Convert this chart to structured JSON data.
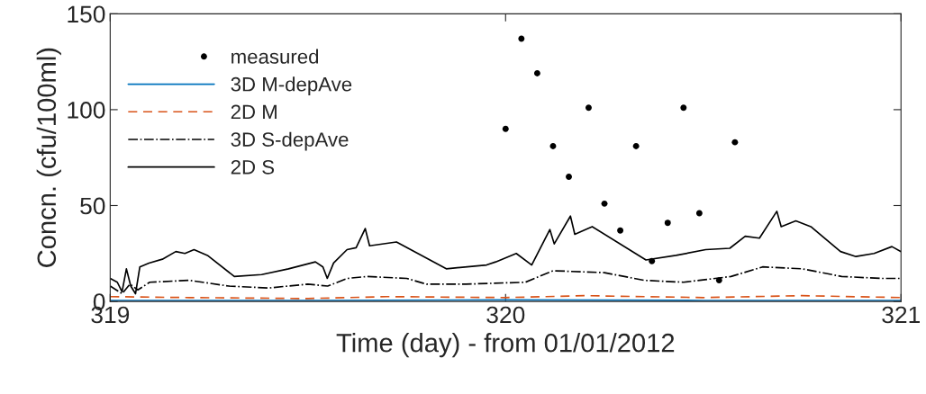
{
  "chart_data": {
    "type": "line",
    "xlabel": "Time (day) - from 01/01/2012",
    "ylabel": "Concn. (cfu/100ml)",
    "xlim": [
      319,
      321
    ],
    "xticks": [
      319,
      320,
      321
    ],
    "ylim": [
      0,
      150
    ],
    "yticks": [
      0,
      50,
      100,
      150
    ],
    "grid": false,
    "legend": "top left",
    "series": [
      {
        "name": "measured",
        "type": "scatter",
        "marker": "circle",
        "color": "#000000",
        "x": [
          320.0,
          320.04,
          320.08,
          320.12,
          320.16,
          320.21,
          320.25,
          320.29,
          320.33,
          320.37,
          320.41,
          320.45,
          320.49,
          320.54,
          320.58
        ],
        "values": [
          90,
          137,
          119,
          81,
          65,
          101,
          51,
          37,
          81,
          21,
          41,
          101,
          46,
          11,
          83
        ]
      },
      {
        "name": "3D M-depAve",
        "line_style": "solid",
        "color": "#0072bd",
        "x": [
          319.0,
          319.5,
          320.0,
          320.5,
          321.0
        ],
        "values": [
          0.5,
          0.5,
          0.8,
          0.5,
          0.5
        ]
      },
      {
        "name": "2D M",
        "line_style": "dashed",
        "color": "#d95319",
        "x": [
          319.0,
          319.2,
          319.5,
          319.7,
          320.0,
          320.2,
          320.5,
          320.75,
          321.0
        ],
        "values": [
          2.5,
          2,
          1.5,
          2.5,
          2,
          3,
          2,
          3,
          2
        ]
      },
      {
        "name": "3D S-depAve",
        "line_style": "dashdot",
        "color": "#000000",
        "x": [
          319.0,
          319.03,
          319.05,
          319.07,
          319.1,
          319.2,
          319.3,
          319.4,
          319.5,
          319.55,
          319.6,
          319.65,
          319.75,
          319.8,
          319.9,
          320.05,
          320.12,
          320.25,
          320.35,
          320.45,
          320.57,
          320.65,
          320.75,
          320.85,
          320.95,
          321.0
        ],
        "values": [
          8,
          4,
          9,
          6,
          10,
          11,
          8,
          7,
          9,
          8,
          12,
          13,
          12,
          9,
          9,
          10,
          16,
          15,
          11,
          10,
          13,
          18,
          17,
          13,
          12,
          12
        ]
      },
      {
        "name": "2D S",
        "line_style": "solid",
        "color": "#000000",
        "x": [
          319.0,
          319.018,
          319.03,
          319.041,
          319.052,
          319.064,
          319.075,
          319.098,
          319.132,
          319.166,
          319.189,
          319.212,
          319.246,
          319.314,
          319.383,
          319.451,
          319.519,
          319.538,
          319.549,
          319.565,
          319.599,
          319.622,
          319.645,
          319.656,
          319.724,
          319.85,
          319.952,
          319.975,
          320.027,
          320.066,
          320.096,
          320.112,
          320.123,
          320.164,
          320.175,
          320.219,
          320.355,
          320.431,
          320.506,
          320.567,
          320.606,
          320.642,
          320.686,
          320.697,
          320.734,
          320.772,
          320.847,
          320.886,
          320.932,
          320.977,
          321.0
        ],
        "values": [
          12,
          10,
          5,
          17,
          8,
          4,
          18,
          20,
          22,
          26,
          25,
          27,
          24,
          13,
          14,
          17,
          20.6,
          18,
          12,
          20,
          27,
          28,
          38,
          29,
          31,
          17,
          19,
          20.6,
          25,
          19,
          31,
          37.5,
          30,
          44.5,
          35,
          39,
          21.6,
          24,
          27,
          27.7,
          34,
          33,
          47,
          39,
          42,
          39,
          26,
          23.4,
          25,
          28.6,
          26
        ]
      }
    ]
  }
}
